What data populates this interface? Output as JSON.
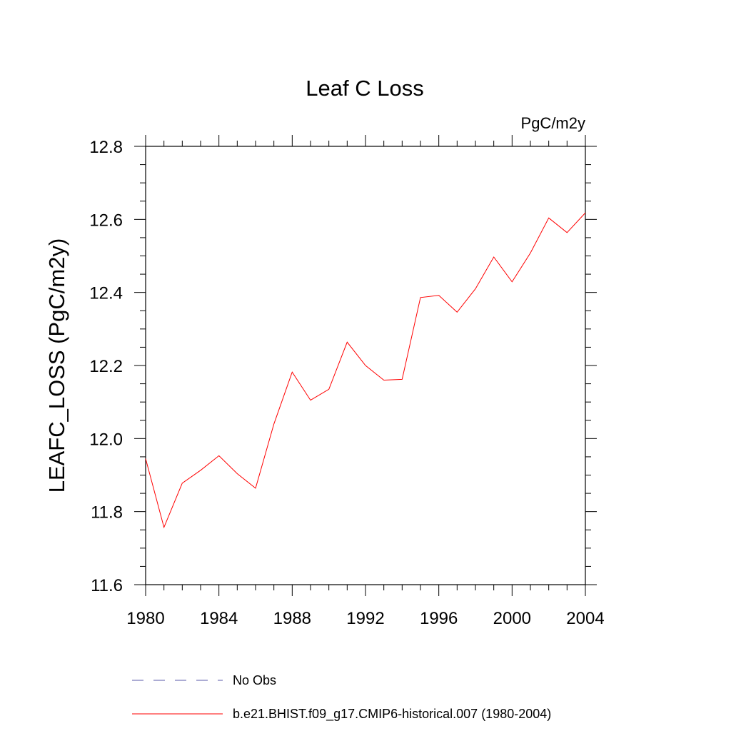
{
  "chart_data": {
    "type": "line",
    "title": "Leaf C Loss",
    "units_label": "PgC/m2y",
    "xlabel": "",
    "ylabel": "LEAFC_LOSS  (PgC/m2y)",
    "xlim": [
      1980,
      2004
    ],
    "ylim": [
      11.6,
      12.8
    ],
    "x_ticks": [
      1980,
      1984,
      1988,
      1992,
      1996,
      2000,
      2004
    ],
    "y_ticks": [
      11.6,
      11.8,
      12.0,
      12.2,
      12.4,
      12.6,
      12.8
    ],
    "x_tick_labels": [
      "1980",
      "1984",
      "1988",
      "1992",
      "1996",
      "2000",
      "2004"
    ],
    "y_tick_labels": [
      "11.6",
      "11.8",
      "12.0",
      "12.2",
      "12.4",
      "12.6",
      "12.8"
    ],
    "grid": false,
    "legend_position": "bottom",
    "series": [
      {
        "name": "b.e21.BHIST.f09_g17.CMIP6-historical.007 (1980-2004)",
        "color": "#ff0000",
        "dash": "solid",
        "x": [
          1980,
          1981,
          1982,
          1983,
          1984,
          1985,
          1986,
          1987,
          1988,
          1989,
          1990,
          1991,
          1992,
          1993,
          1994,
          1995,
          1996,
          1997,
          1998,
          1999,
          2000,
          2001,
          2002,
          2003,
          2004
        ],
        "values": [
          11.945,
          11.757,
          11.878,
          11.913,
          11.953,
          11.904,
          11.864,
          12.04,
          12.182,
          12.105,
          12.135,
          12.264,
          12.2,
          12.16,
          12.162,
          12.386,
          12.392,
          12.346,
          12.41,
          12.497,
          12.429,
          12.508,
          12.604,
          12.564,
          12.618
        ]
      }
    ],
    "legend": [
      {
        "label": "No Obs",
        "color": "#5a5aa8",
        "dash": "dashed"
      },
      {
        "label": "b.e21.BHIST.f09_g17.CMIP6-historical.007 (1980-2004)",
        "color": "#ff0000",
        "dash": "solid"
      }
    ]
  }
}
